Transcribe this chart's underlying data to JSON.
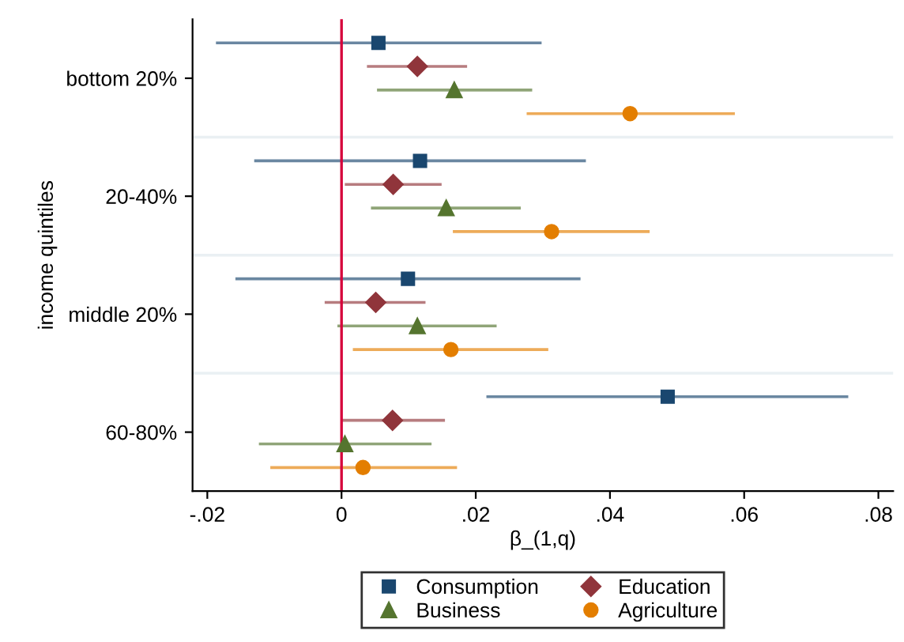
{
  "chart_data": {
    "type": "scatter",
    "orientation": "horizontal",
    "xlabel": "β_(1,q)",
    "ylabel": "income quintiles",
    "categories": [
      "bottom 20%",
      "20-40%",
      "middle 20%",
      "60-80%"
    ],
    "series": [
      {
        "name": "Consumption",
        "color": "#1a476f",
        "marker": "square",
        "values": [
          0.0055,
          0.0117,
          0.0099,
          0.0486
        ],
        "errors": [
          [
            -0.0185,
            0.0296
          ],
          [
            -0.0128,
            0.0362
          ],
          [
            -0.0156,
            0.0354
          ],
          [
            0.0218,
            0.0753
          ]
        ]
      },
      {
        "name": "Education",
        "color": "#90353b",
        "marker": "diamond",
        "values": [
          0.0113,
          0.0077,
          0.0051,
          0.0076
        ],
        "errors": [
          [
            0.004,
            0.0185
          ],
          [
            0.0007,
            0.0147
          ],
          [
            -0.0023,
            0.0123
          ],
          [
            0.0001,
            0.0152
          ]
        ]
      },
      {
        "name": "Business",
        "color": "#55752f",
        "marker": "triangle",
        "values": [
          0.0168,
          0.0156,
          0.0113,
          0.0005
        ],
        "errors": [
          [
            0.0055,
            0.0282
          ],
          [
            0.0046,
            0.0265
          ],
          [
            -0.0004,
            0.0229
          ],
          [
            -0.0121,
            0.0132
          ]
        ]
      },
      {
        "name": "Agriculture",
        "color": "#e37e00",
        "marker": "circle",
        "values": [
          0.043,
          0.0313,
          0.0163,
          0.0032
        ],
        "errors": [
          [
            0.0278,
            0.0584
          ],
          [
            0.0168,
            0.0457
          ],
          [
            0.0019,
            0.0306
          ],
          [
            -0.0104,
            0.017
          ]
        ]
      }
    ],
    "xlim": [
      -0.0222,
      0.0822
    ],
    "xticks": [
      {
        "value": -0.02,
        "label": "-.02"
      },
      0,
      {
        "value": 0.02,
        "label": ".02"
      },
      {
        "value": 0.04,
        "label": ".04"
      },
      {
        "value": 0.06,
        "label": ".06"
      },
      {
        "value": 0.08,
        "label": ".08"
      }
    ],
    "ref_lines": [
      {
        "axis": "x",
        "value": 0,
        "color": "#d6003a"
      }
    ],
    "grid": "y",
    "legend": "bottom"
  }
}
